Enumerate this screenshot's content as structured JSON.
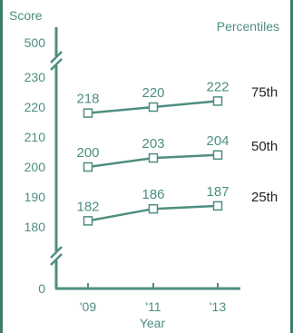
{
  "chart_data": {
    "type": "line",
    "title": "",
    "ylabel": "Score",
    "xlabel": "Year",
    "legend_title": "Percentiles",
    "categories": [
      "'09",
      "'11",
      "'13"
    ],
    "yticks_main": [
      180,
      190,
      200,
      210,
      220,
      230
    ],
    "ylim_main": [
      175,
      232
    ],
    "ytick_top": 500,
    "ytick_bottom": 0,
    "axis_breaks": "between 0 and 180, and between 230 and 500",
    "grid": false,
    "series": [
      {
        "name": "75th",
        "values": [
          218,
          220,
          222
        ]
      },
      {
        "name": "50th",
        "values": [
          200,
          203,
          204
        ]
      },
      {
        "name": "25th",
        "values": [
          182,
          186,
          187
        ]
      }
    ],
    "colors": {
      "line": "#4e8e80",
      "text": "#4e8e80",
      "series_label": "#222222",
      "frame": "#3d7d6d"
    }
  }
}
